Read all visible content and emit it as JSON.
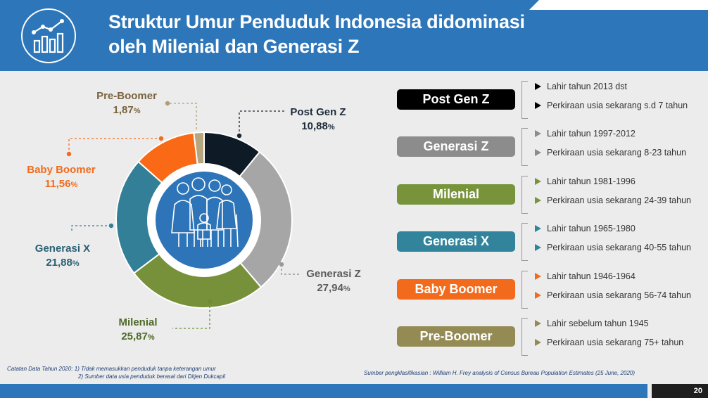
{
  "title_line1": "Struktur Umur Penduduk Indonesia didominasi",
  "title_line2": "oleh Milenial dan Generasi Z",
  "page_number": "20",
  "chart_data": {
    "type": "pie",
    "donut": true,
    "slices": [
      {
        "name": "Post Gen Z",
        "value": 10.88,
        "value_label": "10,88",
        "color": "#0e1b26",
        "label_color": "#1e2b3a"
      },
      {
        "name": "Generasi Z",
        "value": 27.94,
        "value_label": "27,94",
        "color": "#a6a6a6",
        "label_color": "#5c5c5c"
      },
      {
        "name": "Milenial",
        "value": 25.87,
        "value_label": "25,87",
        "color": "#76913a",
        "label_color": "#4e6a28"
      },
      {
        "name": "Generasi X",
        "value": 21.88,
        "value_label": "21,88",
        "color": "#327f97",
        "label_color": "#2a6074"
      },
      {
        "name": "Baby Boomer",
        "value": 11.56,
        "value_label": "11,56",
        "color": "#fa6a16",
        "label_color": "#f26b1d"
      },
      {
        "name": "Pre-Boomer",
        "value": 1.87,
        "value_label": "1,87",
        "color": "#b5a67e",
        "label_color": "#7a6440"
      }
    ],
    "percent_sign": "%"
  },
  "generations": [
    {
      "name": "Post Gen Z",
      "color": "#000000",
      "line1": "Lahir tahun 2013 dst",
      "line2": "Perkiraan usia sekarang s.d 7 tahun"
    },
    {
      "name": "Generasi Z",
      "color": "#8c8c8c",
      "line1": "Lahir tahun 1997-2012",
      "line2": "Perkiraan usia sekarang 8-23 tahun"
    },
    {
      "name": "Milenial",
      "color": "#77943a",
      "line1": "Lahir tahun 1981-1996",
      "line2": "Perkiraan usia sekarang 24-39 tahun"
    },
    {
      "name": "Generasi X",
      "color": "#31849b",
      "line1": "Lahir tahun 1965-1980",
      "line2": "Perkiraan usia sekarang 40-55 tahun"
    },
    {
      "name": "Baby Boomer",
      "color": "#f26b1d",
      "line1": "Lahir tahun 1946-1964",
      "line2": "Perkiraan usia sekarang 56-74 tahun"
    },
    {
      "name": "Pre-Boomer",
      "color": "#948a54",
      "line1": "Lahir sebelum tahun 1945",
      "line2": "Perkiraan usia sekarang 75+ tahun"
    }
  ],
  "note_line1": "Catatan Data Tahun 2020: 1)  Tidak memasukkan penduduk tanpa keterangan umur",
  "note_line2": "2) Sumber data usia penduduk berasal dari Ditjen Dukcapil",
  "source": "Sumber pengklasifikasian : William H. Frey analysis of Census Bureau Population Estimates (25 June, 2020)",
  "icons": {
    "logo": "chart-growth-icon",
    "center": "family-icon",
    "bullet": "triangle-bullet-icon"
  }
}
